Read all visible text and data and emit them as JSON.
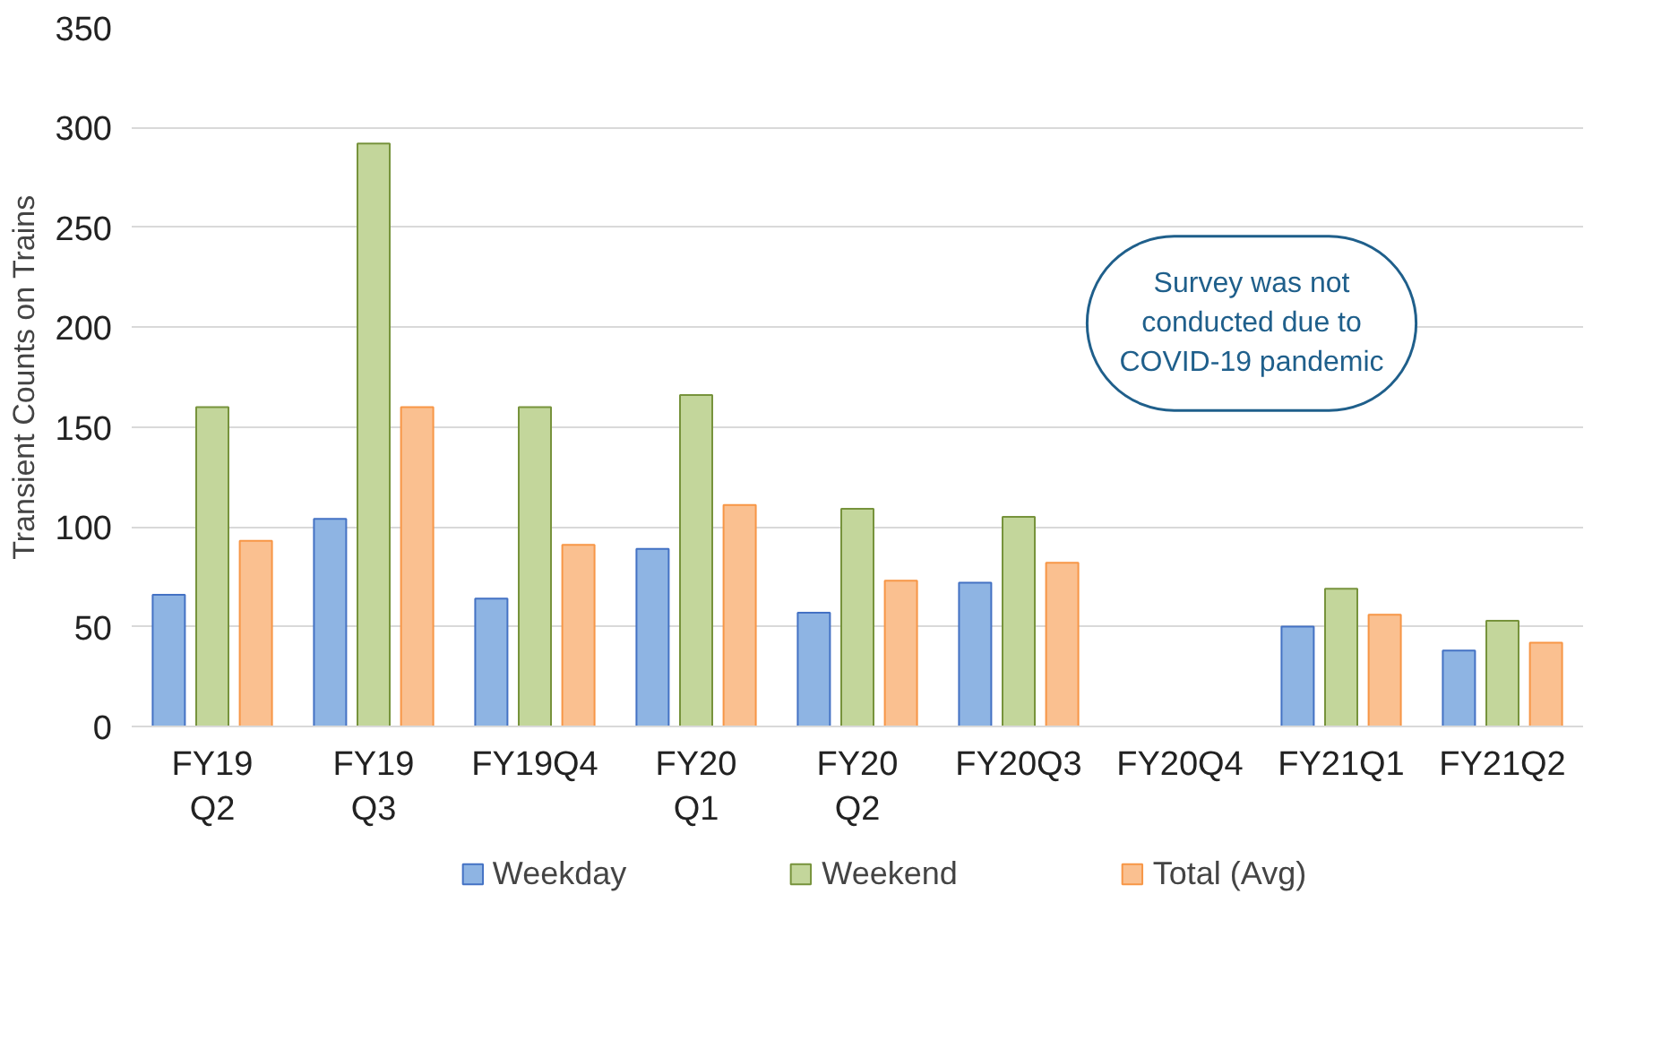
{
  "chart_data": {
    "type": "bar",
    "ylabel": "Transient Counts on Trains",
    "categories": [
      "FY19 Q2",
      "FY19 Q3",
      "FY19Q4",
      "FY20 Q1",
      "FY20 Q2",
      "FY20Q3",
      "FY20Q4",
      "FY21Q1",
      "FY21Q2"
    ],
    "series": [
      {
        "name": "Weekday",
        "color": "#8eb4e3",
        "values": [
          66,
          104,
          64,
          89,
          57,
          72,
          null,
          50,
          38
        ]
      },
      {
        "name": "Weekend",
        "color": "#c3d69b",
        "values": [
          160,
          292,
          160,
          166,
          109,
          105,
          null,
          69,
          53
        ]
      },
      {
        "name": "Total (Avg)",
        "color": "#fac090",
        "values": [
          93,
          160,
          91,
          111,
          73,
          82,
          null,
          56,
          42
        ]
      }
    ],
    "ylim": [
      0,
      350
    ],
    "yticks": [
      0,
      50,
      100,
      150,
      200,
      250,
      300,
      350
    ],
    "grid": "y",
    "legend": "bottom",
    "annotations": [
      "Survey was not conducted due to COVID-19 pandemic"
    ]
  }
}
